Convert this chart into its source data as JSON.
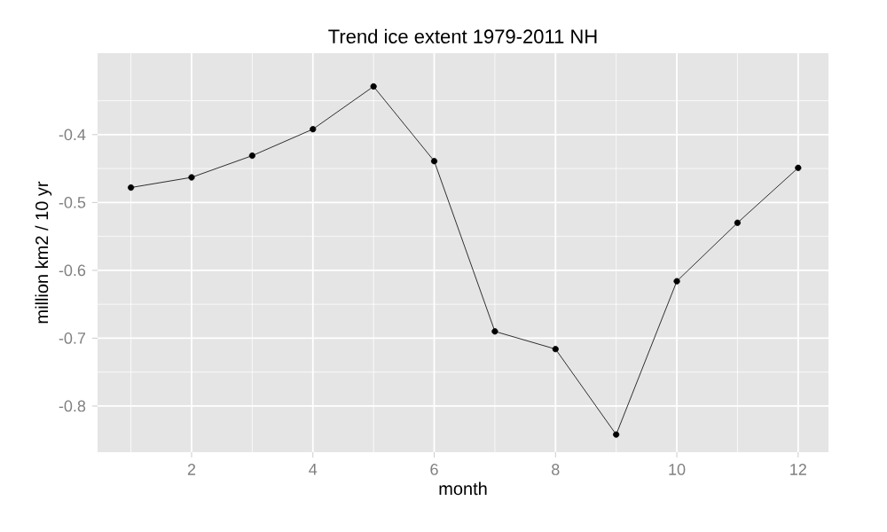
{
  "chart_data": {
    "type": "line",
    "title": "Trend ice extent 1979-2011 NH",
    "xlabel": "month",
    "ylabel": "million km2 / 10 yr",
    "x": [
      1,
      2,
      3,
      4,
      5,
      6,
      7,
      8,
      9,
      10,
      11,
      12
    ],
    "values": [
      -0.478,
      -0.463,
      -0.431,
      -0.392,
      -0.329,
      -0.439,
      -0.69,
      -0.716,
      -0.842,
      -0.616,
      -0.53,
      -0.449
    ],
    "color": "#000000",
    "marker": "circle",
    "line_style": "solid",
    "grid": true,
    "xlim": [
      0.45,
      12.5
    ],
    "ylim": [
      -0.868,
      -0.28
    ],
    "xticks": [
      2,
      4,
      6,
      8,
      10,
      12
    ],
    "yticks": [
      -0.8,
      -0.7,
      -0.6,
      -0.5,
      -0.4
    ]
  }
}
